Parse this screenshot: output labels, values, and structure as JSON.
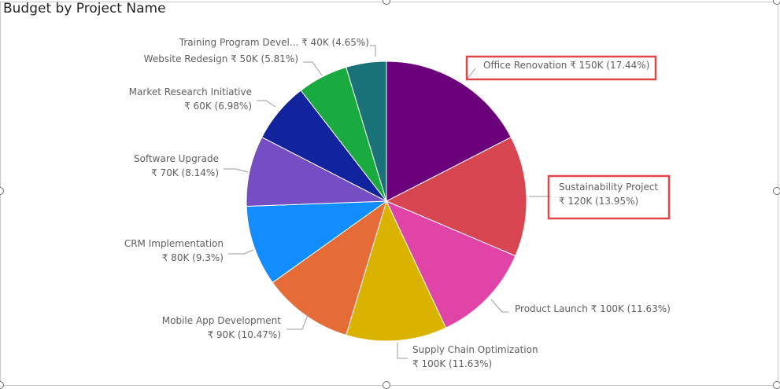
{
  "chart_data": {
    "type": "pie",
    "title": "Budget by Project Name",
    "slices": [
      {
        "name": "Office Renovation",
        "value_label": "₹ 150K (17.44%)",
        "value": 150000,
        "percent": 17.44,
        "color": "#6b007b",
        "highlighted": true
      },
      {
        "name": "Sustainability Project",
        "value_label": "₹ 120K (13.95%)",
        "value": 120000,
        "percent": 13.95,
        "color": "#d64550",
        "highlighted": true
      },
      {
        "name": "Product Launch",
        "value_label": "₹ 100K (11.63%)",
        "value": 100000,
        "percent": 11.63,
        "color": "#e044a7",
        "highlighted": false
      },
      {
        "name": "Supply Chain Optimization",
        "value_label": "₹ 100K (11.63%)",
        "value": 100000,
        "percent": 11.63,
        "color": "#d9b300",
        "highlighted": false
      },
      {
        "name": "Mobile App Development",
        "value_label": "₹ 90K (10.47%)",
        "value": 90000,
        "percent": 10.47,
        "color": "#e66c37",
        "highlighted": false
      },
      {
        "name": "CRM Implementation",
        "value_label": "₹ 80K (9.3%)",
        "value": 80000,
        "percent": 9.3,
        "color": "#118dff",
        "highlighted": false
      },
      {
        "name": "Software Upgrade",
        "value_label": "₹ 70K (8.14%)",
        "value": 70000,
        "percent": 8.14,
        "color": "#744ec2",
        "highlighted": false
      },
      {
        "name": "Market Research Initiative",
        "value_label": "₹ 60K (6.98%)",
        "value": 60000,
        "percent": 6.98,
        "color": "#12239e",
        "highlighted": false
      },
      {
        "name": "Website Redesign",
        "value_label": "₹ 50K (5.81%)",
        "value": 50000,
        "percent": 5.81,
        "color": "#1aab40",
        "highlighted": false
      },
      {
        "name": "Training Program Devel...",
        "value_label": "₹ 40K (4.65%)",
        "value": 40000,
        "percent": 4.65,
        "color": "#197278",
        "highlighted": false
      }
    ],
    "highlight_color": "#e04848"
  }
}
